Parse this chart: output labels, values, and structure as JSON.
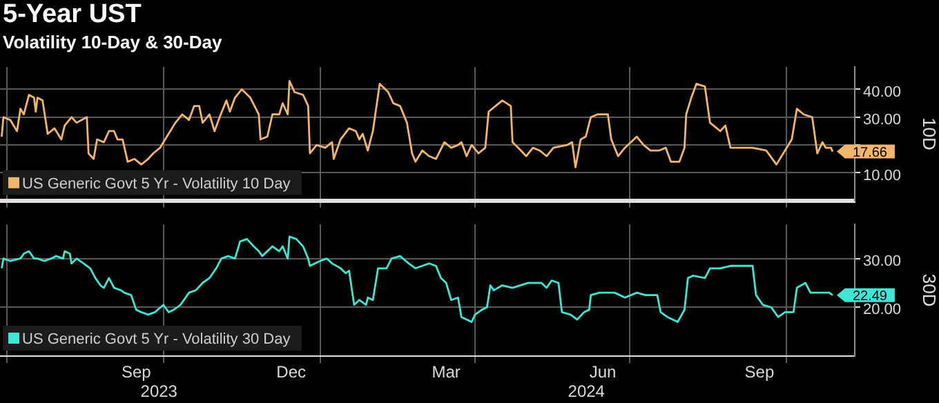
{
  "chart_data": [
    {
      "type": "line",
      "title": "5-Year UST",
      "subtitle": "Volatility 10-Day & 30-Day",
      "ylabel": "10D",
      "legend": "bottom left",
      "grid": true,
      "tick_labels": "y",
      "xlim": [
        "2023-06-27",
        "2024-11-10"
      ],
      "xticks": [
        {
          "value": "2023-07-01",
          "label": null
        },
        {
          "value": "2023-10-01",
          "label": null
        },
        {
          "value": "2024-01-01",
          "label": null
        },
        {
          "value": "2024-04-01",
          "label": null
        },
        {
          "value": "2024-07-01",
          "label": null
        },
        {
          "value": "2024-10-01",
          "label": null
        }
      ],
      "ylim": [
        0,
        48
      ],
      "yticks": [
        {
          "value": 10,
          "label": "10.00"
        },
        {
          "value": 20,
          "label": null
        },
        {
          "value": 30,
          "label": "30.00"
        },
        {
          "value": 40,
          "label": "40.00"
        }
      ],
      "series": [
        {
          "name": "US Generic Govt 5 Yr - Volatility 10 Day",
          "color": "#f2b56b",
          "x": [
            "2023-06-28",
            "2023-06-29",
            "2023-07-03",
            "2023-07-07",
            "2023-07-09",
            "2023-07-11",
            "2023-07-14",
            "2023-07-17",
            "2023-07-18",
            "2023-07-19",
            "2023-07-22",
            "2023-07-25",
            "2023-07-29",
            "2023-08-02",
            "2023-08-04",
            "2023-08-08",
            "2023-08-11",
            "2023-08-17",
            "2023-08-18",
            "2023-08-21",
            "2023-08-23",
            "2023-08-27",
            "2023-08-30",
            "2023-09-02",
            "2023-09-04",
            "2023-09-07",
            "2023-09-10",
            "2023-09-14",
            "2023-09-18",
            "2023-09-22",
            "2023-09-25",
            "2023-09-29",
            "2023-10-03",
            "2023-10-08",
            "2023-10-12",
            "2023-10-16",
            "2023-10-19",
            "2023-10-22",
            "2023-10-24",
            "2023-10-28",
            "2023-10-31",
            "2023-11-03",
            "2023-11-07",
            "2023-11-09",
            "2023-11-12",
            "2023-11-16",
            "2023-11-21",
            "2023-11-26",
            "2023-11-27",
            "2023-12-01",
            "2023-12-04",
            "2023-12-08",
            "2023-12-10",
            "2023-12-13",
            "2023-12-14",
            "2023-12-17",
            "2023-12-22",
            "2023-12-25",
            "2023-12-26",
            "2023-12-30",
            "2024-01-04",
            "2024-01-08",
            "2024-01-09",
            "2024-01-13",
            "2024-01-18",
            "2024-01-22",
            "2024-01-24",
            "2024-01-26",
            "2024-01-29",
            "2024-02-01",
            "2024-02-05",
            "2024-02-10",
            "2024-02-13",
            "2024-02-17",
            "2024-02-21",
            "2024-02-24",
            "2024-02-26",
            "2024-03-01",
            "2024-03-05",
            "2024-03-09",
            "2024-03-14",
            "2024-03-18",
            "2024-03-22",
            "2024-03-24",
            "2024-03-27",
            "2024-03-30",
            "2024-04-03",
            "2024-04-07",
            "2024-04-09",
            "2024-04-13",
            "2024-04-17",
            "2024-04-22",
            "2024-04-23",
            "2024-04-28",
            "2024-05-01",
            "2024-05-05",
            "2024-05-09",
            "2024-05-13",
            "2024-05-17",
            "2024-05-25",
            "2024-05-28",
            "2024-05-30",
            "2024-06-02",
            "2024-06-05",
            "2024-06-08",
            "2024-06-12",
            "2024-06-18",
            "2024-06-20",
            "2024-06-24",
            "2024-06-28",
            "2024-07-05",
            "2024-07-09",
            "2024-07-13",
            "2024-07-18",
            "2024-07-22",
            "2024-07-25",
            "2024-07-30",
            "2024-08-02",
            "2024-08-03",
            "2024-08-06",
            "2024-08-09",
            "2024-08-14",
            "2024-08-17",
            "2024-08-21",
            "2024-08-23",
            "2024-08-26",
            "2024-08-29",
            "2024-09-03",
            "2024-09-11",
            "2024-09-19",
            "2024-09-25",
            "2024-09-30",
            "2024-10-04",
            "2024-10-07",
            "2024-10-11",
            "2024-10-16",
            "2024-10-19",
            "2024-10-22",
            "2024-10-24",
            "2024-10-27",
            "2024-10-28"
          ],
          "values": [
            23,
            30,
            29,
            25,
            33,
            31,
            38,
            37,
            32,
            37,
            36,
            24,
            26,
            22,
            27,
            30,
            28,
            30,
            17,
            15,
            22,
            21,
            25,
            25,
            22,
            22,
            14,
            15,
            13,
            15,
            17,
            19,
            23,
            28,
            31,
            29,
            34,
            34,
            28,
            31,
            25,
            30,
            36,
            32,
            37,
            40,
            37,
            31,
            22,
            23,
            31,
            31,
            35,
            31,
            43,
            39,
            38,
            34,
            17,
            20,
            19,
            21,
            15,
            22,
            26,
            25,
            22,
            24,
            18,
            25,
            42,
            39,
            35,
            34,
            28,
            17,
            14,
            18,
            16,
            15,
            21,
            19,
            20,
            21,
            16,
            20,
            17,
            19,
            32,
            34,
            36,
            34,
            21,
            18,
            16,
            19,
            18,
            16,
            19,
            20,
            21,
            12,
            22,
            23,
            30,
            31,
            31,
            22,
            16,
            19,
            23,
            20,
            18,
            18,
            19,
            14,
            14,
            19,
            31,
            37,
            42,
            41,
            28,
            26,
            25,
            27,
            19,
            19,
            19,
            18,
            13,
            18,
            22,
            33,
            31,
            30,
            17,
            21,
            19,
            19,
            17.66
          ],
          "value_labels": [
            null,
            null,
            null,
            null,
            null,
            null,
            null,
            null,
            null,
            null,
            null,
            null,
            null,
            null,
            null,
            null,
            null,
            null,
            null,
            null,
            null,
            null,
            null,
            null,
            null,
            null,
            null,
            null,
            null,
            null,
            null,
            null,
            null,
            null,
            null,
            null,
            null,
            null,
            null,
            null,
            null,
            null,
            null,
            null,
            null,
            null,
            null,
            null,
            null,
            null,
            null,
            null,
            null,
            null,
            null,
            null,
            null,
            null,
            null,
            null,
            null,
            null,
            null,
            null,
            null,
            null,
            null,
            null,
            null,
            null,
            null,
            null,
            null,
            null,
            null,
            null,
            null,
            null,
            null,
            null,
            null,
            null,
            null,
            null,
            null,
            null,
            null,
            null,
            null,
            null,
            null,
            null,
            null,
            null,
            null,
            null,
            null,
            null,
            null,
            null,
            null,
            null,
            null,
            null,
            null,
            null,
            null,
            null,
            null,
            null,
            null,
            null,
            null,
            null,
            null,
            null,
            null,
            null,
            null,
            null,
            null,
            null,
            null,
            null,
            null,
            null,
            null,
            null,
            null,
            null,
            null,
            null,
            null,
            null,
            null,
            null,
            null,
            null,
            null,
            null,
            "17.66"
          ]
        }
      ]
    },
    {
      "type": "line",
      "ylabel": "30D",
      "legend": "bottom left",
      "grid": true,
      "xlim": [
        "2023-06-27",
        "2024-11-10"
      ],
      "xticks": [
        {
          "value": "2023-07-01",
          "label": null
        },
        {
          "value": "2023-09-15",
          "label": "Sep"
        },
        {
          "value": "2023-10-01",
          "label": null
        },
        {
          "value": "2023-12-15",
          "label": "Dec"
        },
        {
          "value": "2024-01-01",
          "label": null
        },
        {
          "value": "2024-03-15",
          "label": "Mar"
        },
        {
          "value": "2024-04-01",
          "label": null
        },
        {
          "value": "2024-06-15",
          "label": "Jun"
        },
        {
          "value": "2024-07-01",
          "label": null
        },
        {
          "value": "2024-09-15",
          "label": "Sep"
        },
        {
          "value": "2024-10-01",
          "label": null
        }
      ],
      "ylim": [
        10,
        37
      ],
      "yticks": [
        {
          "value": 20,
          "label": "20.00"
        },
        {
          "value": 30,
          "label": "30.00"
        }
      ],
      "annotations": [
        "2023",
        "2024"
      ],
      "series": [
        {
          "name": "US Generic Govt 5 Yr - Volatility 30 Day",
          "color": "#3ee6d6",
          "x": [
            "2023-06-28",
            "2023-06-29",
            "2023-07-03",
            "2023-07-09",
            "2023-07-11",
            "2023-07-14",
            "2023-07-17",
            "2023-07-19",
            "2023-07-23",
            "2023-07-27",
            "2023-07-30",
            "2023-08-03",
            "2023-08-04",
            "2023-08-07",
            "2023-08-08",
            "2023-08-11",
            "2023-08-15",
            "2023-08-19",
            "2023-08-22",
            "2023-08-25",
            "2023-08-27",
            "2023-08-30",
            "2023-09-02",
            "2023-09-06",
            "2023-09-08",
            "2023-09-12",
            "2023-09-15",
            "2023-09-18",
            "2023-09-22",
            "2023-09-26",
            "2023-10-01",
            "2023-10-04",
            "2023-10-07",
            "2023-10-11",
            "2023-10-16",
            "2023-10-20",
            "2023-10-24",
            "2023-10-28",
            "2023-11-01",
            "2023-11-04",
            "2023-11-08",
            "2023-11-12",
            "2023-11-15",
            "2023-11-19",
            "2023-11-23",
            "2023-11-26",
            "2023-11-28",
            "2023-12-04",
            "2023-12-08",
            "2023-12-10",
            "2023-12-13",
            "2023-12-14",
            "2023-12-18",
            "2023-12-22",
            "2023-12-25",
            "2023-12-26",
            "2024-01-01",
            "2024-01-05",
            "2024-01-08",
            "2024-01-13",
            "2024-01-16",
            "2024-01-18",
            "2024-01-21",
            "2024-01-24",
            "2024-01-28",
            "2024-01-29",
            "2024-02-01",
            "2024-02-04",
            "2024-02-09",
            "2024-02-12",
            "2024-02-17",
            "2024-02-22",
            "2024-02-26",
            "2024-03-01",
            "2024-03-05",
            "2024-03-09",
            "2024-03-12",
            "2024-03-15",
            "2024-03-18",
            "2024-03-22",
            "2024-03-24",
            "2024-03-27",
            "2024-03-30",
            "2024-04-01",
            "2024-04-05",
            "2024-04-08",
            "2024-04-10",
            "2024-04-12",
            "2024-04-17",
            "2024-04-23",
            "2024-05-02",
            "2024-05-10",
            "2024-05-13",
            "2024-05-16",
            "2024-05-20",
            "2024-05-22",
            "2024-05-27",
            "2024-05-31",
            "2024-06-04",
            "2024-06-07",
            "2024-06-08",
            "2024-06-13",
            "2024-06-18",
            "2024-06-22",
            "2024-06-28",
            "2024-07-05",
            "2024-07-10",
            "2024-07-17",
            "2024-07-19",
            "2024-07-23",
            "2024-07-29",
            "2024-08-02",
            "2024-08-04",
            "2024-08-07",
            "2024-08-14",
            "2024-08-17",
            "2024-08-23",
            "2024-08-29",
            "2024-09-04",
            "2024-09-11",
            "2024-09-13",
            "2024-09-17",
            "2024-09-22",
            "2024-09-26",
            "2024-09-30",
            "2024-10-05",
            "2024-10-07",
            "2024-10-12",
            "2024-10-15",
            "2024-10-22",
            "2024-10-26",
            "2024-10-28"
          ],
          "values": [
            28,
            30,
            29.5,
            30,
            31,
            31.5,
            30,
            30,
            29.5,
            30,
            30.5,
            30,
            31.5,
            31,
            29,
            30,
            29,
            28,
            26,
            24.5,
            24,
            26,
            24,
            23.5,
            23,
            22.5,
            19.5,
            19,
            18.5,
            19,
            20.5,
            19,
            19.5,
            20.5,
            23,
            23.5,
            25,
            26,
            28,
            30,
            30.5,
            30,
            33.5,
            34,
            32.5,
            31.5,
            30.5,
            32.5,
            31.5,
            32.5,
            30,
            34.5,
            34,
            32.5,
            30,
            28.5,
            29.5,
            30,
            29,
            28,
            27,
            27.5,
            20.5,
            21.5,
            20.5,
            22,
            21.5,
            28,
            28,
            30,
            30.5,
            29,
            28,
            28.5,
            29,
            28.5,
            26,
            25,
            21.5,
            22,
            18,
            17.5,
            17,
            18.5,
            19.5,
            20,
            24.5,
            23.5,
            24.5,
            24,
            25,
            25,
            24,
            25.5,
            25,
            19,
            18.5,
            17.5,
            19,
            19.5,
            22.5,
            23,
            23,
            23,
            22,
            23,
            22.5,
            22.5,
            19,
            18,
            17,
            19.5,
            26,
            26.5,
            26,
            28,
            28,
            28.5,
            28.5,
            28.5,
            22.5,
            20.5,
            20,
            18,
            19,
            19,
            24,
            25,
            23,
            23,
            23,
            22.49
          ],
          "value_labels": [
            null,
            null,
            null,
            null,
            null,
            null,
            null,
            null,
            null,
            null,
            null,
            null,
            null,
            null,
            null,
            null,
            null,
            null,
            null,
            null,
            null,
            null,
            null,
            null,
            null,
            null,
            null,
            null,
            null,
            null,
            null,
            null,
            null,
            null,
            null,
            null,
            null,
            null,
            null,
            null,
            null,
            null,
            null,
            null,
            null,
            null,
            null,
            null,
            null,
            null,
            null,
            null,
            null,
            null,
            null,
            null,
            null,
            null,
            null,
            null,
            null,
            null,
            null,
            null,
            null,
            null,
            null,
            null,
            null,
            null,
            null,
            null,
            null,
            null,
            null,
            null,
            null,
            null,
            null,
            null,
            null,
            null,
            null,
            null,
            null,
            null,
            null,
            null,
            null,
            null,
            null,
            null,
            null,
            null,
            null,
            null,
            null,
            null,
            null,
            null,
            null,
            null,
            null,
            null,
            null,
            null,
            null,
            null,
            null,
            null,
            null,
            null,
            null,
            null,
            null,
            null,
            null,
            null,
            null,
            null,
            null,
            null,
            null,
            null,
            null,
            null,
            null,
            null,
            null,
            null,
            null,
            "22.49"
          ]
        }
      ]
    }
  ]
}
